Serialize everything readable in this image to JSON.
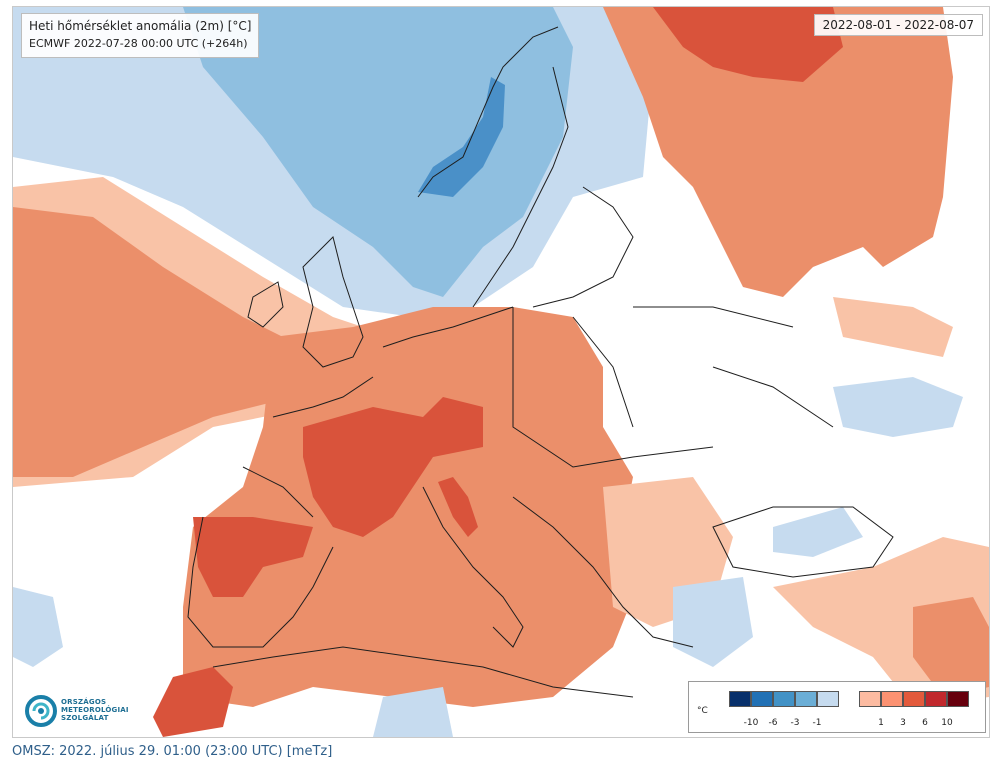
{
  "title": {
    "line1": "Heti hőmérséklet anomália (2m) [°C]",
    "line2": "ECMWF 2022-07-28 00:00 UTC (+264h)"
  },
  "date_range": "2022-08-01 - 2022-08-07",
  "logo": {
    "lines": [
      "ORSZÁGOS",
      "METEOROLÓGIAI",
      "SZOLGÁLAT"
    ]
  },
  "legend": {
    "unit": "°C",
    "cold_colors": [
      "#08306b",
      "#2171b5",
      "#4292c6",
      "#6baed6",
      "#c6dbef"
    ],
    "warm_colors": [
      "#fcbba1",
      "#fc9272",
      "#e35a3c",
      "#c1282d",
      "#67000d"
    ],
    "ticks_cold": [
      "-10",
      "-6",
      "-3",
      "-1"
    ],
    "ticks_warm": [
      "1",
      "3",
      "6",
      "10"
    ]
  },
  "palette": {
    "cool_light": "#c6dbef",
    "cool_mid": "#8fbfe0",
    "cool_dark": "#4a90c8",
    "warm_light": "#f9c3a7",
    "warm_mid": "#eb8f6a",
    "warm_dark": "#d9533b"
  },
  "caption": "OMSZ: 2022. július 29. 01:00 (23:00 UTC) [meTz]"
}
